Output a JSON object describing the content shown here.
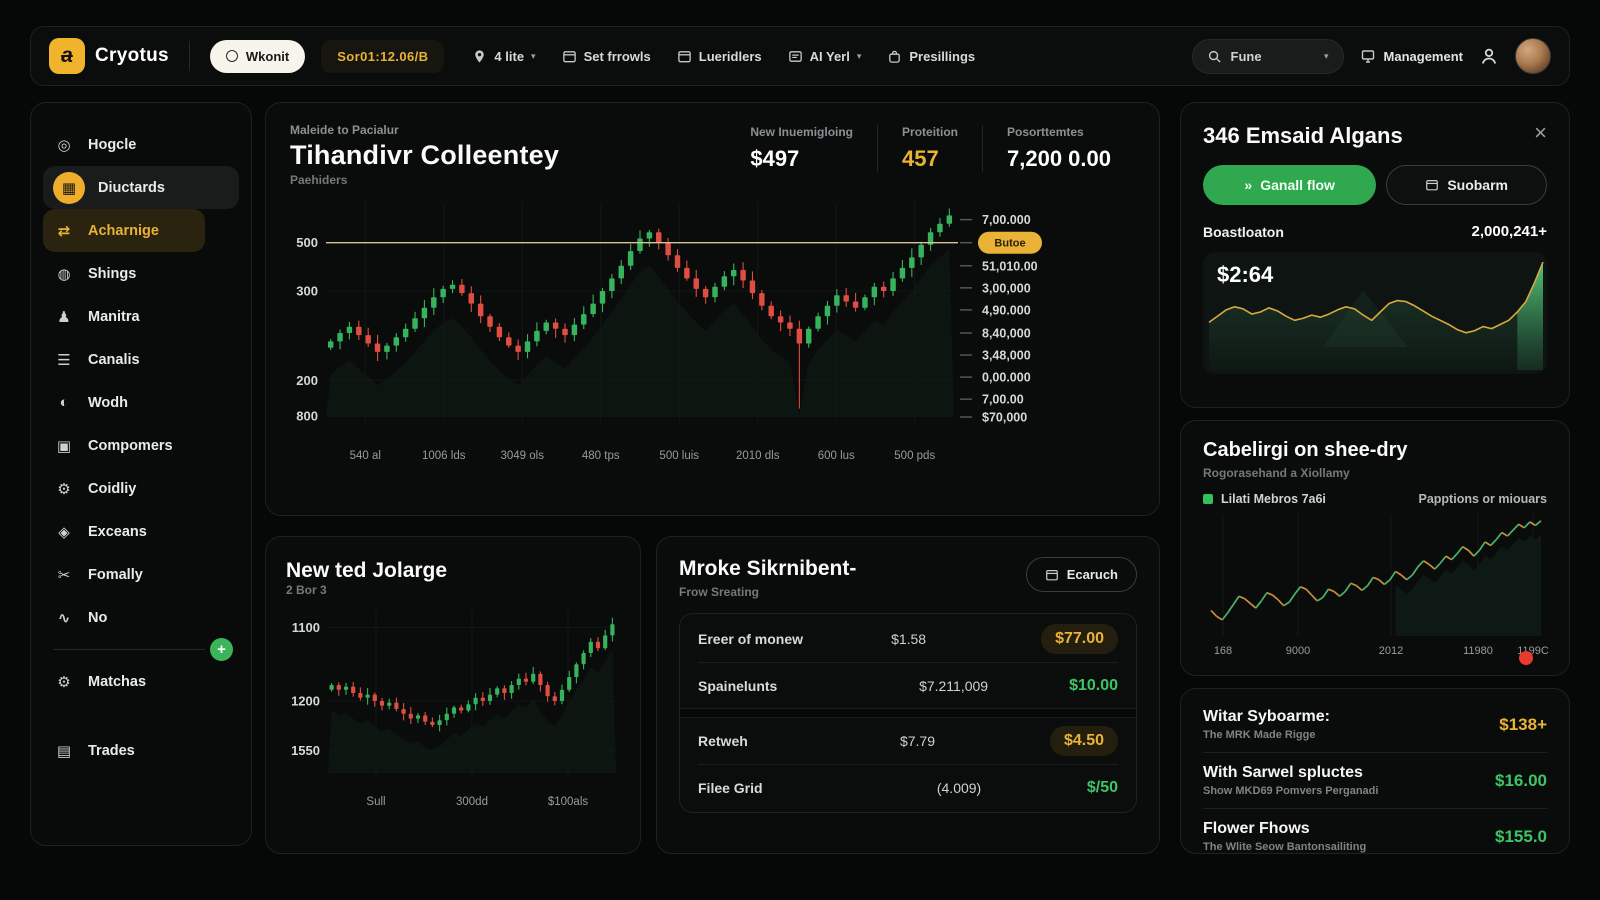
{
  "theme": {
    "accent_yellow": "#e9b235",
    "green": "#37b35d",
    "red": "#e04d43",
    "card_bg": "#0a0c0b"
  },
  "navbar": {
    "brand": "Cryotus",
    "status_pill": "Wkonit",
    "ticker_badge": "Sor01:12.06/B",
    "items": [
      {
        "label": "4 lite",
        "icon": "location-pin-icon",
        "caret": true
      },
      {
        "label": "Set frrowls",
        "icon": "window-icon",
        "caret": false
      },
      {
        "label": "Lueridlers",
        "icon": "window-icon",
        "caret": false
      },
      {
        "label": "AI Yerl",
        "icon": "chat-icon",
        "caret": true
      },
      {
        "label": "Presillings",
        "icon": "bag-icon",
        "caret": false
      }
    ],
    "search": {
      "value": "Fune"
    },
    "management_label": "Management"
  },
  "sidebar": {
    "items": [
      {
        "label": "Hogcle",
        "icon": "target-icon"
      },
      {
        "label": "Diuctards",
        "icon": "cards-icon",
        "state": "active-row"
      },
      {
        "label": "Acharnige",
        "icon": "exchange-icon",
        "state": "active-pill"
      },
      {
        "label": "Shings",
        "icon": "globe-icon"
      },
      {
        "label": "Manitra",
        "icon": "person-icon"
      },
      {
        "label": "Canalis",
        "icon": "layers-icon"
      },
      {
        "label": "Wodh",
        "icon": "disc-icon"
      },
      {
        "label": "Compomers",
        "icon": "lock-icon"
      },
      {
        "label": "Coidliy",
        "icon": "gear-icon"
      },
      {
        "label": "Exceans",
        "icon": "cube-icon"
      },
      {
        "label": "Fomally",
        "icon": "scissors-icon"
      },
      {
        "label": "No",
        "icon": "wave-icon",
        "divider_after": true
      },
      {
        "label": "Matchas",
        "icon": "gear-icon"
      },
      {
        "label": "Trades",
        "icon": "grid-icon",
        "gap_before": true
      }
    ]
  },
  "main_chart": {
    "eyebrow": "Maleide to Pacialur",
    "title": "Tihandivr Colleentey",
    "subtitle": "Paehiders",
    "stats": [
      {
        "label": "New Inuemigloing",
        "value": "$497",
        "tone": "white"
      },
      {
        "label": "Proteition",
        "value": "457",
        "tone": "yellow"
      },
      {
        "label": "Posorttemtes",
        "value": "7,200 0.00",
        "tone": "white"
      }
    ]
  },
  "jolarge_card": {
    "title": "New ted Jolarge",
    "subtitle": "2 Bor 3"
  },
  "market_card": {
    "title": "Mroke Sikrnibent-",
    "subtitle": "Frow Sreating",
    "button_label": "Ecaruch",
    "rows": [
      {
        "name": "Ereer of monew",
        "value": "$1.58",
        "amount": "$77.00",
        "tone": "yellow-pill"
      },
      {
        "name": "Spainelunts",
        "value": "$7.211,009",
        "amount": "$10.00",
        "tone": "green"
      },
      {
        "name": "Retweh",
        "value": "$7.79",
        "amount": "$4.50",
        "tone": "yellow-pill"
      },
      {
        "name": "Filee Grid",
        "value": "(4.009)",
        "amount": "$/50",
        "tone": "green"
      }
    ]
  },
  "right_panel": {
    "algans": {
      "title": "346 Emsaid Algans",
      "buttons": [
        {
          "label": "Ganall flow",
          "style": "green",
          "icon": "double-chevron-icon"
        },
        {
          "label": "Suobarm",
          "style": "dark",
          "icon": "window-icon"
        }
      ],
      "stat_label": "Boastloaton",
      "stat_value": "2,000,241+",
      "price": "$2:64"
    },
    "cabelirgi": {
      "title": "Cabelirgi on shee-dry",
      "subtitle": "Rogorasehand a Xiollamy",
      "legend_left": "Lilati Mebros 7a6i",
      "legend_right": "Papptions or miouars"
    },
    "stats_rows": [
      {
        "title": "Witar Syboarme:",
        "subtitle": "The MRK Made Rigge",
        "value": "$138+",
        "tone": "yellow"
      },
      {
        "title": "With Sarwel spluctes",
        "subtitle": "Show MKD69 Pomvers Perganadi",
        "value": "$16.00",
        "tone": "green"
      },
      {
        "title": "Flower Fhows",
        "subtitle": "The Wlite Seow Bantonsailiting",
        "value": "$155.0",
        "tone": "green"
      }
    ]
  },
  "chart_data": [
    {
      "id": "main-candles",
      "type": "candlestick",
      "title": "Tihandivr Colleentey",
      "ylim": [
        0,
        100
      ],
      "grid": true,
      "left_ticks": [
        {
          "label": "500",
          "pos": 0.17
        },
        {
          "label": "300",
          "pos": 0.4
        },
        {
          "label": "200",
          "pos": 0.825
        },
        {
          "label": "800",
          "pos": 0.995
        }
      ],
      "right_ticks": [
        {
          "label": "7,00.000",
          "pos": 0.06
        },
        {
          "label": "51,010.00",
          "pos": 0.28
        },
        {
          "label": "3,00,000",
          "pos": 0.385
        },
        {
          "label": "4,90.000",
          "pos": 0.49
        },
        {
          "label": "8,40,000",
          "pos": 0.6
        },
        {
          "label": "3,48,000",
          "pos": 0.705
        },
        {
          "label": "0,00.000",
          "pos": 0.81
        },
        {
          "label": "7,00.00",
          "pos": 0.915
        },
        {
          "label": "$70,000",
          "pos": 1.0
        }
      ],
      "price_badge": {
        "label": "Butoe",
        "pos": 0.17
      },
      "threshold": 83,
      "x_ticks": [
        "540 al",
        "1006 lds",
        "3049 ols",
        "480 tps",
        "500 luis",
        "2010 dls",
        "600 lus",
        "500 pds"
      ],
      "closes": [
        36,
        40,
        43,
        39,
        35,
        31,
        34,
        38,
        42,
        47,
        52,
        57,
        61,
        63,
        59,
        54,
        48,
        43,
        38,
        34,
        31,
        36,
        41,
        45,
        42,
        39,
        44,
        49,
        54,
        60,
        66,
        72,
        79,
        85,
        88,
        83,
        77,
        71,
        66,
        61,
        57,
        62,
        67,
        70,
        65,
        59,
        53,
        48,
        45,
        42,
        35,
        42,
        48,
        53,
        58,
        55,
        52,
        57,
        62,
        60,
        66,
        71,
        76,
        82,
        88,
        92,
        96
      ],
      "spike_low": {
        "index": 50,
        "value": 4
      }
    },
    {
      "id": "mini-candles",
      "type": "candlestick",
      "title": "New ted Jolarge",
      "ylim": [
        0,
        100
      ],
      "grid": true,
      "left_ticks": [
        {
          "label": "1100",
          "pos": 0.09
        },
        {
          "label": "1200",
          "pos": 0.55
        },
        {
          "label": "1550",
          "pos": 0.86
        }
      ],
      "x_ticks": [
        "Sull",
        "300dd",
        "$100als"
      ],
      "closes": [
        55,
        52,
        54,
        50,
        47,
        49,
        45,
        42,
        44,
        40,
        37,
        34,
        36,
        32,
        30,
        33,
        37,
        41,
        39,
        43,
        47,
        45,
        49,
        53,
        50,
        55,
        59,
        57,
        62,
        55,
        48,
        45,
        52,
        60,
        68,
        75,
        82,
        78,
        86,
        93
      ]
    },
    {
      "id": "emsaid-area",
      "type": "area",
      "label": "$2:64",
      "ylim": [
        0,
        100
      ],
      "values": [
        40,
        46,
        52,
        55,
        53,
        48,
        50,
        54,
        51,
        46,
        42,
        44,
        47,
        45,
        48,
        52,
        55,
        53,
        47,
        42,
        50,
        58,
        61,
        60,
        56,
        51,
        46,
        42,
        38,
        33,
        30,
        32,
        36,
        34,
        38,
        42,
        50,
        60,
        78,
        98
      ]
    },
    {
      "id": "cabel-line",
      "type": "line",
      "ylim": [
        0,
        100
      ],
      "x_ticks": [
        "168",
        "9000",
        "2012",
        "11980",
        "1199C"
      ],
      "values": [
        20,
        15,
        12,
        18,
        25,
        32,
        30,
        26,
        22,
        28,
        35,
        33,
        29,
        24,
        27,
        34,
        40,
        38,
        33,
        28,
        31,
        38,
        36,
        32,
        36,
        43,
        41,
        37,
        41,
        48,
        46,
        42,
        46,
        53,
        50,
        46,
        50,
        57,
        62,
        59,
        55,
        60,
        66,
        63,
        68,
        74,
        71,
        66,
        71,
        78,
        75,
        80,
        86,
        83,
        88,
        93,
        90,
        95,
        92,
        96
      ]
    }
  ]
}
